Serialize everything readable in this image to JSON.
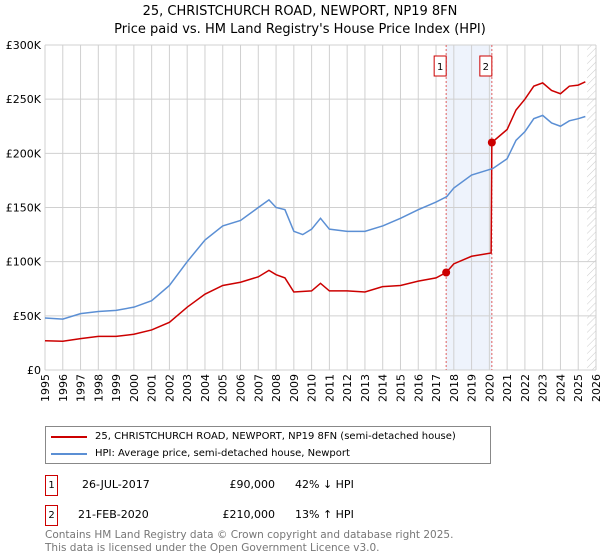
{
  "header": {
    "title": "25, CHRISTCHURCH ROAD, NEWPORT, NP19 8FN",
    "subtitle": "Price paid vs. HM Land Registry's House Price Index (HPI)"
  },
  "chart_data": {
    "type": "line",
    "title": "25, CHRISTCHURCH ROAD, NEWPORT, NP19 8FN",
    "subtitle": "Price paid vs. HM Land Registry's House Price Index (HPI)",
    "xlim": [
      1995,
      2026
    ],
    "ylim": [
      0,
      300000
    ],
    "x_ticks": [
      "1995",
      "1996",
      "1997",
      "1998",
      "1999",
      "2000",
      "2001",
      "2002",
      "2003",
      "2004",
      "2005",
      "2006",
      "2007",
      "2008",
      "2009",
      "2010",
      "2011",
      "2012",
      "2013",
      "2014",
      "2015",
      "2016",
      "2017",
      "2018",
      "2019",
      "2020",
      "2021",
      "2022",
      "2023",
      "2024",
      "2025",
      "2026"
    ],
    "y_ticks": [
      {
        "v": 0,
        "label": "£0"
      },
      {
        "v": 50000,
        "label": "£50K"
      },
      {
        "v": 100000,
        "label": "£100K"
      },
      {
        "v": 150000,
        "label": "£150K"
      },
      {
        "v": 200000,
        "label": "£200K"
      },
      {
        "v": 250000,
        "label": "£250K"
      },
      {
        "v": 300000,
        "label": "£300K"
      }
    ],
    "grid": true,
    "legend_placement": "below",
    "series": [
      {
        "name": "25, CHRISTCHURCH ROAD, NEWPORT, NP19 8FN (semi-detached house)",
        "color": "#cc0000",
        "points": [
          [
            1995,
            27000
          ],
          [
            1996,
            26500
          ],
          [
            1997,
            29000
          ],
          [
            1998,
            31000
          ],
          [
            1999,
            31000
          ],
          [
            2000,
            33000
          ],
          [
            2001,
            37000
          ],
          [
            2002,
            44000
          ],
          [
            2003,
            58000
          ],
          [
            2004,
            70000
          ],
          [
            2005,
            78000
          ],
          [
            2006,
            81000
          ],
          [
            2007,
            86000
          ],
          [
            2007.6,
            92000
          ],
          [
            2008,
            88000
          ],
          [
            2008.5,
            85000
          ],
          [
            2009,
            72000
          ],
          [
            2010,
            73000
          ],
          [
            2010.5,
            80000
          ],
          [
            2011,
            73000
          ],
          [
            2012,
            73000
          ],
          [
            2013,
            72000
          ],
          [
            2014,
            77000
          ],
          [
            2015,
            78000
          ],
          [
            2016,
            82000
          ],
          [
            2017,
            85000
          ],
          [
            2017.57,
            90000
          ],
          [
            2018,
            98000
          ],
          [
            2019,
            105000
          ],
          [
            2020.1,
            108000
          ],
          [
            2020.14,
            210000
          ],
          [
            2021,
            222000
          ],
          [
            2021.5,
            240000
          ],
          [
            2022,
            250000
          ],
          [
            2022.5,
            262000
          ],
          [
            2023,
            265000
          ],
          [
            2023.5,
            258000
          ],
          [
            2024,
            255000
          ],
          [
            2024.5,
            262000
          ],
          [
            2025,
            263000
          ],
          [
            2025.4,
            266000
          ]
        ]
      },
      {
        "name": "HPI: Average price, semi-detached house, Newport",
        "color": "#5b8fd4",
        "points": [
          [
            1995,
            48000
          ],
          [
            1996,
            47000
          ],
          [
            1997,
            52000
          ],
          [
            1998,
            54000
          ],
          [
            1999,
            55000
          ],
          [
            2000,
            58000
          ],
          [
            2001,
            64000
          ],
          [
            2002,
            78000
          ],
          [
            2003,
            100000
          ],
          [
            2004,
            120000
          ],
          [
            2005,
            133000
          ],
          [
            2006,
            138000
          ],
          [
            2007,
            150000
          ],
          [
            2007.6,
            157000
          ],
          [
            2008,
            150000
          ],
          [
            2008.5,
            148000
          ],
          [
            2009,
            128000
          ],
          [
            2009.5,
            125000
          ],
          [
            2010,
            130000
          ],
          [
            2010.5,
            140000
          ],
          [
            2011,
            130000
          ],
          [
            2012,
            128000
          ],
          [
            2013,
            128000
          ],
          [
            2014,
            133000
          ],
          [
            2015,
            140000
          ],
          [
            2016,
            148000
          ],
          [
            2017,
            155000
          ],
          [
            2017.6,
            160000
          ],
          [
            2018,
            168000
          ],
          [
            2019,
            180000
          ],
          [
            2020,
            185000
          ],
          [
            2020.2,
            186000
          ],
          [
            2021,
            195000
          ],
          [
            2021.5,
            212000
          ],
          [
            2022,
            220000
          ],
          [
            2022.5,
            232000
          ],
          [
            2023,
            235000
          ],
          [
            2023.5,
            228000
          ],
          [
            2024,
            225000
          ],
          [
            2024.5,
            230000
          ],
          [
            2025,
            232000
          ],
          [
            2025.4,
            234000
          ]
        ]
      }
    ],
    "annotations": [
      {
        "label": "1",
        "x": 2017.57,
        "y": 90000
      },
      {
        "label": "2",
        "x": 2020.14,
        "y": 210000
      }
    ],
    "shaded_range": [
      2017.57,
      2020.14
    ],
    "hatched_from": 2025.5
  },
  "legend": {
    "red": "25, CHRISTCHURCH ROAD, NEWPORT, NP19 8FN (semi-detached house)",
    "blue": "HPI: Average price, semi-detached house, Newport"
  },
  "transactions": [
    {
      "num": "1",
      "date": "26-JUL-2017",
      "price": "£90,000",
      "hpi": "42% ↓ HPI"
    },
    {
      "num": "2",
      "date": "21-FEB-2020",
      "price": "£210,000",
      "hpi": "13% ↑ HPI"
    }
  ],
  "footer": {
    "line1": "Contains HM Land Registry data © Crown copyright and database right 2025.",
    "line2": "This data is licensed under the Open Government Licence v3.0."
  }
}
